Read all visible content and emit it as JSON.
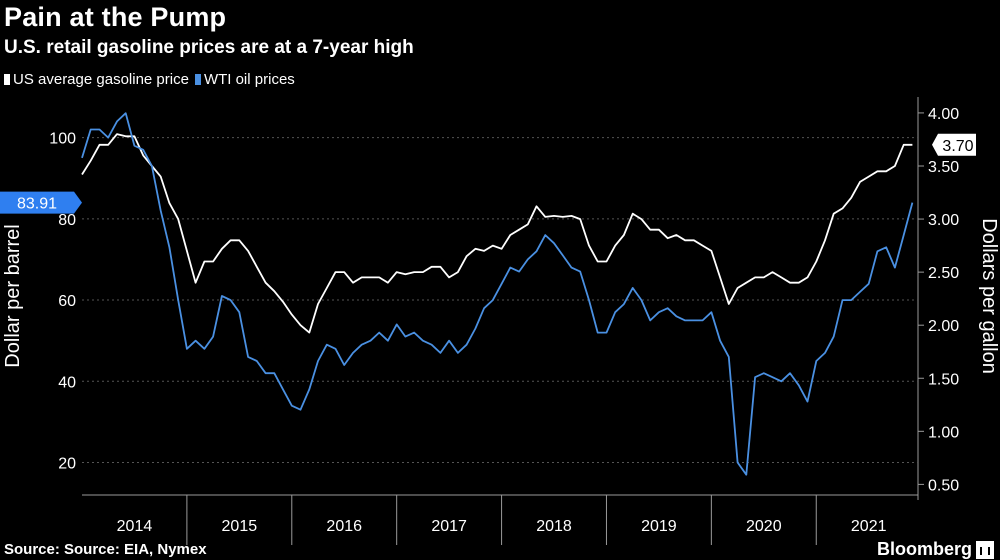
{
  "chart_data": {
    "type": "line",
    "title": "Pain at the Pump",
    "subtitle": "U.S. retail gasoline prices are at a 7-year high",
    "source": "Source: Source: EIA, Nymex",
    "brand": "Bloomberg",
    "x_labels": [
      "2014",
      "2015",
      "2016",
      "2017",
      "2018",
      "2019",
      "2020",
      "2021"
    ],
    "x_start": 2014.0,
    "x_range": [
      2014.0,
      2021.97
    ],
    "left_axis": {
      "label": "Dollar per barrel",
      "ylim": [
        12,
        110
      ],
      "ticks": [
        20,
        40,
        60,
        80,
        100
      ]
    },
    "right_axis": {
      "label": "Dollars per gallon",
      "ylim": [
        0.4,
        4.15
      ],
      "ticks": [
        "0.50",
        "1.00",
        "1.50",
        "2.00",
        "2.50",
        "3.00",
        "3.50",
        "4.00"
      ]
    },
    "series": [
      {
        "name": "US average gasoline price",
        "color": "#ffffff",
        "axis": "right",
        "last_label": "3.70",
        "values": [
          3.42,
          3.55,
          3.7,
          3.7,
          3.8,
          3.78,
          3.78,
          3.6,
          3.5,
          3.4,
          3.15,
          3.0,
          2.7,
          2.4,
          2.6,
          2.6,
          2.72,
          2.8,
          2.8,
          2.7,
          2.55,
          2.4,
          2.32,
          2.22,
          2.1,
          2.0,
          1.93,
          2.2,
          2.35,
          2.5,
          2.5,
          2.4,
          2.45,
          2.45,
          2.45,
          2.4,
          2.5,
          2.48,
          2.5,
          2.5,
          2.55,
          2.55,
          2.45,
          2.5,
          2.65,
          2.72,
          2.7,
          2.75,
          2.72,
          2.85,
          2.9,
          2.95,
          3.12,
          3.02,
          3.03,
          3.02,
          3.03,
          3.0,
          2.75,
          2.6,
          2.6,
          2.75,
          2.85,
          3.05,
          3.0,
          2.9,
          2.9,
          2.82,
          2.85,
          2.8,
          2.8,
          2.75,
          2.7,
          2.45,
          2.2,
          2.35,
          2.4,
          2.45,
          2.45,
          2.5,
          2.45,
          2.4,
          2.4,
          2.45,
          2.6,
          2.8,
          3.05,
          3.1,
          3.2,
          3.35,
          3.4,
          3.45,
          3.45,
          3.5,
          3.7,
          3.7
        ]
      },
      {
        "name": "WTI oil prices",
        "color": "#4a90e2",
        "axis": "left",
        "last_label": "83.91",
        "values": [
          95,
          102,
          102,
          100,
          104,
          106,
          98,
          97,
          93,
          82,
          73,
          60,
          48,
          50,
          48,
          51,
          61,
          60,
          57,
          46,
          45,
          42,
          42,
          38,
          34,
          33,
          38,
          45,
          49,
          48,
          44,
          47,
          49,
          50,
          52,
          50,
          54,
          51,
          52,
          50,
          49,
          47,
          50,
          47,
          49,
          53,
          58,
          60,
          64,
          68,
          67,
          70,
          72,
          76,
          74,
          71,
          68,
          67,
          60,
          52,
          52,
          57,
          59,
          63,
          60,
          55,
          57,
          58,
          56,
          55,
          55,
          55,
          57,
          50,
          46,
          20,
          17,
          41,
          42,
          41,
          40,
          42,
          39,
          35,
          45,
          47,
          51,
          60,
          60,
          62,
          64,
          72,
          73,
          68,
          76,
          84
        ]
      }
    ]
  }
}
